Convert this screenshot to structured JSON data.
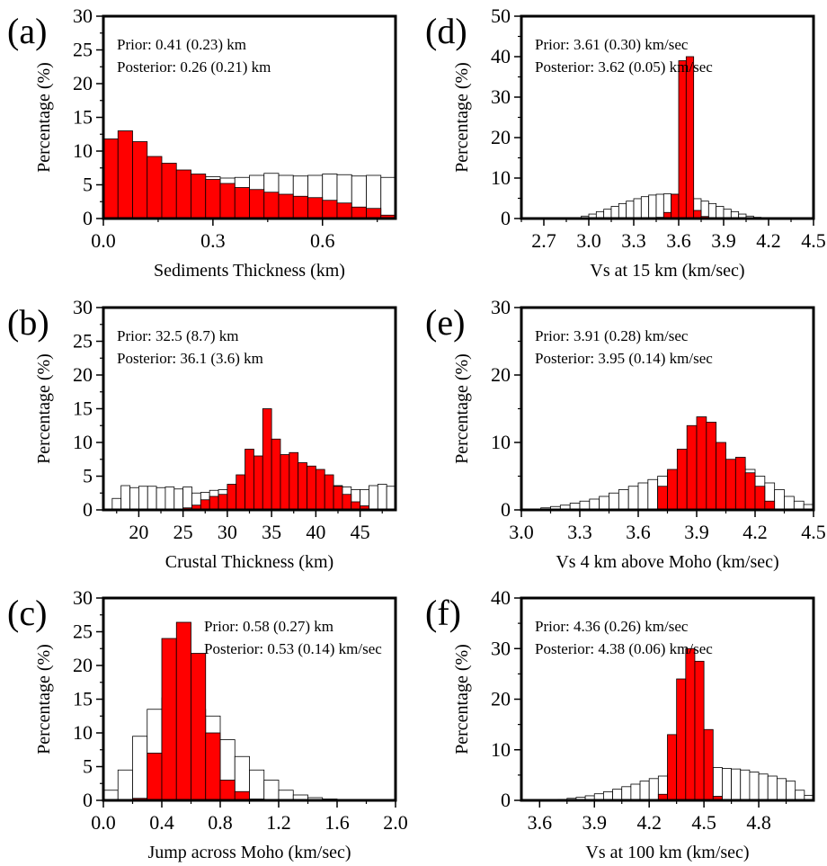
{
  "chart_data": [
    {
      "panel_label": "(a)",
      "type": "bar",
      "xlabel": "Sediments Thickness (km)",
      "ylabel": "Percentage (%)",
      "xlim": [
        0,
        0.8
      ],
      "ylim": [
        0,
        30
      ],
      "xticks": [
        0.0,
        0.3,
        0.6
      ],
      "xtick_labels": [
        "0.0",
        "0.3",
        "0.6"
      ],
      "yticks": [
        0,
        5,
        10,
        15,
        20,
        25,
        30
      ],
      "ytick_labels": [
        "0",
        "5",
        "10",
        "15",
        "20",
        "25",
        "30"
      ],
      "annotations": [
        "Prior: 0.41 (0.23) km",
        "Posterior: 0.26 (0.21) km"
      ],
      "series": [
        {
          "role": "prior",
          "color": "#ffffff",
          "bin_start": 0.0,
          "bin_width": 0.04,
          "values": [
            6.3,
            6.4,
            6.4,
            6.0,
            5.8,
            6.0,
            6.3,
            6.2,
            6.0,
            6.1,
            6.4,
            6.7,
            6.4,
            6.3,
            6.4,
            6.6,
            6.5,
            6.3,
            6.4,
            6.1
          ]
        },
        {
          "role": "posterior",
          "color": "#ff0000",
          "bin_start": 0.0,
          "bin_width": 0.04,
          "values": [
            11.8,
            13.0,
            11.4,
            9.2,
            8.2,
            7.2,
            6.6,
            5.8,
            5.2,
            4.6,
            4.3,
            3.9,
            3.6,
            3.3,
            3.1,
            2.7,
            2.3,
            1.7,
            1.5,
            0.5
          ]
        }
      ],
      "extra_bars": [
        {
          "role": "posterior",
          "color": "#ff0000",
          "x0": -0.008,
          "x1": 0.0,
          "value": 7.0
        }
      ]
    },
    {
      "panel_label": "(b)",
      "type": "bar",
      "xlabel": "Crustal Thickness (km)",
      "ylabel": "Percentage (%)",
      "xlim": [
        16,
        49
      ],
      "ylim": [
        0,
        30
      ],
      "xticks": [
        20,
        25,
        30,
        35,
        40,
        45
      ],
      "xtick_labels": [
        "20",
        "25",
        "30",
        "35",
        "40",
        "45"
      ],
      "yticks": [
        0,
        5,
        10,
        15,
        20,
        25,
        30
      ],
      "ytick_labels": [
        "0",
        "5",
        "10",
        "15",
        "20",
        "25",
        "30"
      ],
      "annotations": [
        "Prior: 32.5 (8.7) km",
        "Posterior: 36.1 (3.6) km"
      ],
      "series": [
        {
          "role": "prior",
          "color": "#ffffff",
          "bin_start": 17,
          "bin_width": 1,
          "values": [
            1.7,
            3.6,
            3.3,
            3.5,
            3.5,
            3.3,
            3.4,
            3.1,
            3.4,
            2.5,
            2.6,
            2.9,
            3.0,
            3.4,
            3.1,
            3.1,
            3.3,
            3.3,
            3.5,
            3.6,
            3.5,
            3.5,
            3.3,
            3.4,
            3.3,
            3.6,
            3.4,
            3.0,
            3.0,
            3.6,
            3.8,
            3.5
          ]
        },
        {
          "role": "posterior",
          "color": "#ff0000",
          "bin_start": 25,
          "bin_width": 1,
          "values": [
            0.3,
            0.7,
            1.5,
            2.0,
            2.3,
            3.8,
            5.2,
            9.0,
            8.0,
            15.0,
            10.5,
            8.2,
            8.5,
            7.0,
            6.5,
            6.0,
            5.2,
            3.5,
            2.3,
            1.2,
            0.6
          ]
        }
      ]
    },
    {
      "panel_label": "(c)",
      "type": "bar",
      "xlabel": "Jump across Moho (km/sec)",
      "ylabel": "Percentage (%)",
      "xlim": [
        0,
        2.0
      ],
      "ylim": [
        0,
        30
      ],
      "xticks": [
        0.0,
        0.4,
        0.8,
        1.2,
        1.6,
        2.0
      ],
      "xtick_labels": [
        "0.0",
        "0.4",
        "0.8",
        "1.2",
        "1.6",
        "2.0"
      ],
      "yticks": [
        0,
        5,
        10,
        15,
        20,
        25,
        30
      ],
      "ytick_labels": [
        "0",
        "5",
        "10",
        "15",
        "20",
        "25",
        "30"
      ],
      "annotations": [
        "Prior: 0.58 (0.27) km",
        "Posterior: 0.53 (0.14) km/sec"
      ],
      "series": [
        {
          "role": "prior",
          "color": "#ffffff",
          "bin_start": 0.0,
          "bin_width": 0.1,
          "values": [
            1.5,
            4.5,
            9.5,
            13.5,
            15.2,
            14.0,
            13.5,
            12.5,
            9.0,
            6.5,
            4.5,
            3.0,
            1.5,
            0.8,
            0.4,
            0.2,
            0.1,
            0.0,
            0.0,
            0.0
          ]
        },
        {
          "role": "posterior",
          "color": "#ff0000",
          "bin_start": 0.2,
          "bin_width": 0.1,
          "values": [
            0.3,
            7.0,
            24.0,
            26.4,
            21.8,
            10.0,
            3.0,
            1.3,
            0.2
          ]
        }
      ]
    },
    {
      "panel_label": "(d)",
      "type": "bar",
      "xlabel": "Vs at 15 km (km/sec)",
      "ylabel": "Percentage (%)",
      "xlim": [
        2.55,
        4.5
      ],
      "ylim": [
        0,
        50
      ],
      "xticks": [
        2.7,
        3.0,
        3.3,
        3.6,
        3.9,
        4.2,
        4.5
      ],
      "xtick_labels": [
        "2.7",
        "3.0",
        "3.3",
        "3.6",
        "3.9",
        "4.2",
        "4.5"
      ],
      "yticks": [
        0,
        10,
        20,
        30,
        40,
        50
      ],
      "ytick_labels": [
        "0",
        "10",
        "20",
        "30",
        "40",
        "50"
      ],
      "annotations": [
        "Prior: 3.61 (0.30) km/sec",
        "Posterior: 3.62 (0.05) km/sec"
      ],
      "series": [
        {
          "role": "prior",
          "color": "#ffffff",
          "bin_start": 2.9,
          "bin_width": 0.05,
          "values": [
            0.2,
            0.6,
            1.1,
            1.7,
            2.3,
            3.0,
            3.7,
            4.3,
            4.9,
            5.4,
            5.8,
            6.0,
            6.1,
            6.0,
            5.8,
            5.4,
            4.9,
            4.3,
            3.7,
            3.0,
            2.3,
            1.7,
            1.1,
            0.6,
            0.3,
            0.1
          ]
        },
        {
          "role": "posterior",
          "color": "#ff0000",
          "bin_start": 3.45,
          "bin_width": 0.05,
          "values": [
            0.3,
            1.5,
            6.0,
            39.0,
            40.0,
            2.0,
            0.5
          ]
        }
      ]
    },
    {
      "panel_label": "(e)",
      "type": "bar",
      "xlabel": "Vs 4 km above Moho (km/sec)",
      "ylabel": "Percentage (%)",
      "xlim": [
        3.0,
        4.5
      ],
      "ylim": [
        0,
        30
      ],
      "xticks": [
        3.0,
        3.3,
        3.6,
        3.9,
        4.2,
        4.5
      ],
      "xtick_labels": [
        "3.0",
        "3.3",
        "3.6",
        "3.9",
        "4.2",
        "4.5"
      ],
      "yticks": [
        0,
        10,
        20,
        30
      ],
      "ytick_labels": [
        "0",
        "10",
        "20",
        "30"
      ],
      "annotations": [
        "Prior: 3.91 (0.28) km/sec",
        "Posterior: 3.95 (0.14) km/sec"
      ],
      "series": [
        {
          "role": "prior",
          "color": "#ffffff",
          "bin_start": 3.1,
          "bin_width": 0.05,
          "values": [
            0.3,
            0.5,
            0.7,
            1.0,
            1.3,
            1.6,
            2.0,
            2.5,
            3.0,
            3.5,
            4.0,
            4.5,
            5.0,
            5.5,
            6.0,
            6.5,
            6.7,
            6.9,
            7.0,
            6.8,
            6.5,
            6.0,
            5.0,
            4.0,
            3.0,
            2.0,
            1.3,
            0.8
          ]
        },
        {
          "role": "posterior",
          "color": "#ff0000",
          "bin_start": 3.7,
          "bin_width": 0.05,
          "values": [
            3.5,
            6.0,
            9.0,
            12.5,
            13.8,
            13.0,
            10.0,
            7.5,
            7.8,
            5.5,
            3.5,
            1.3
          ]
        }
      ]
    },
    {
      "panel_label": "(f)",
      "type": "bar",
      "xlabel": "Vs at 100 km (km/sec)",
      "ylabel": "Percentage (%)",
      "xlim": [
        3.5,
        5.1
      ],
      "ylim": [
        0,
        40
      ],
      "xticks": [
        3.6,
        3.9,
        4.2,
        4.5,
        4.8
      ],
      "xtick_labels": [
        "3.6",
        "3.9",
        "4.2",
        "4.5",
        "4.8"
      ],
      "yticks": [
        0,
        10,
        20,
        30,
        40
      ],
      "ytick_labels": [
        "0",
        "10",
        "20",
        "30",
        "40"
      ],
      "annotations": [
        "Prior: 4.36 (0.26) km/sec",
        "Posterior: 4.38 (0.06) km/sec"
      ],
      "series": [
        {
          "role": "prior",
          "color": "#ffffff",
          "bin_start": 3.7,
          "bin_width": 0.05,
          "values": [
            0.2,
            0.4,
            0.6,
            0.9,
            1.3,
            1.7,
            2.2,
            2.7,
            3.2,
            3.8,
            4.3,
            4.8,
            5.2,
            5.6,
            6.0,
            6.3,
            6.5,
            6.5,
            6.3,
            6.2,
            6.0,
            5.6,
            5.2,
            4.8,
            4.3,
            3.8,
            2.0,
            1.0
          ]
        },
        {
          "role": "posterior",
          "color": "#ff0000",
          "bin_start": 4.25,
          "bin_width": 0.05,
          "values": [
            1.2,
            13.0,
            24.0,
            30.0,
            27.5,
            14.0,
            0.8
          ]
        }
      ]
    }
  ]
}
